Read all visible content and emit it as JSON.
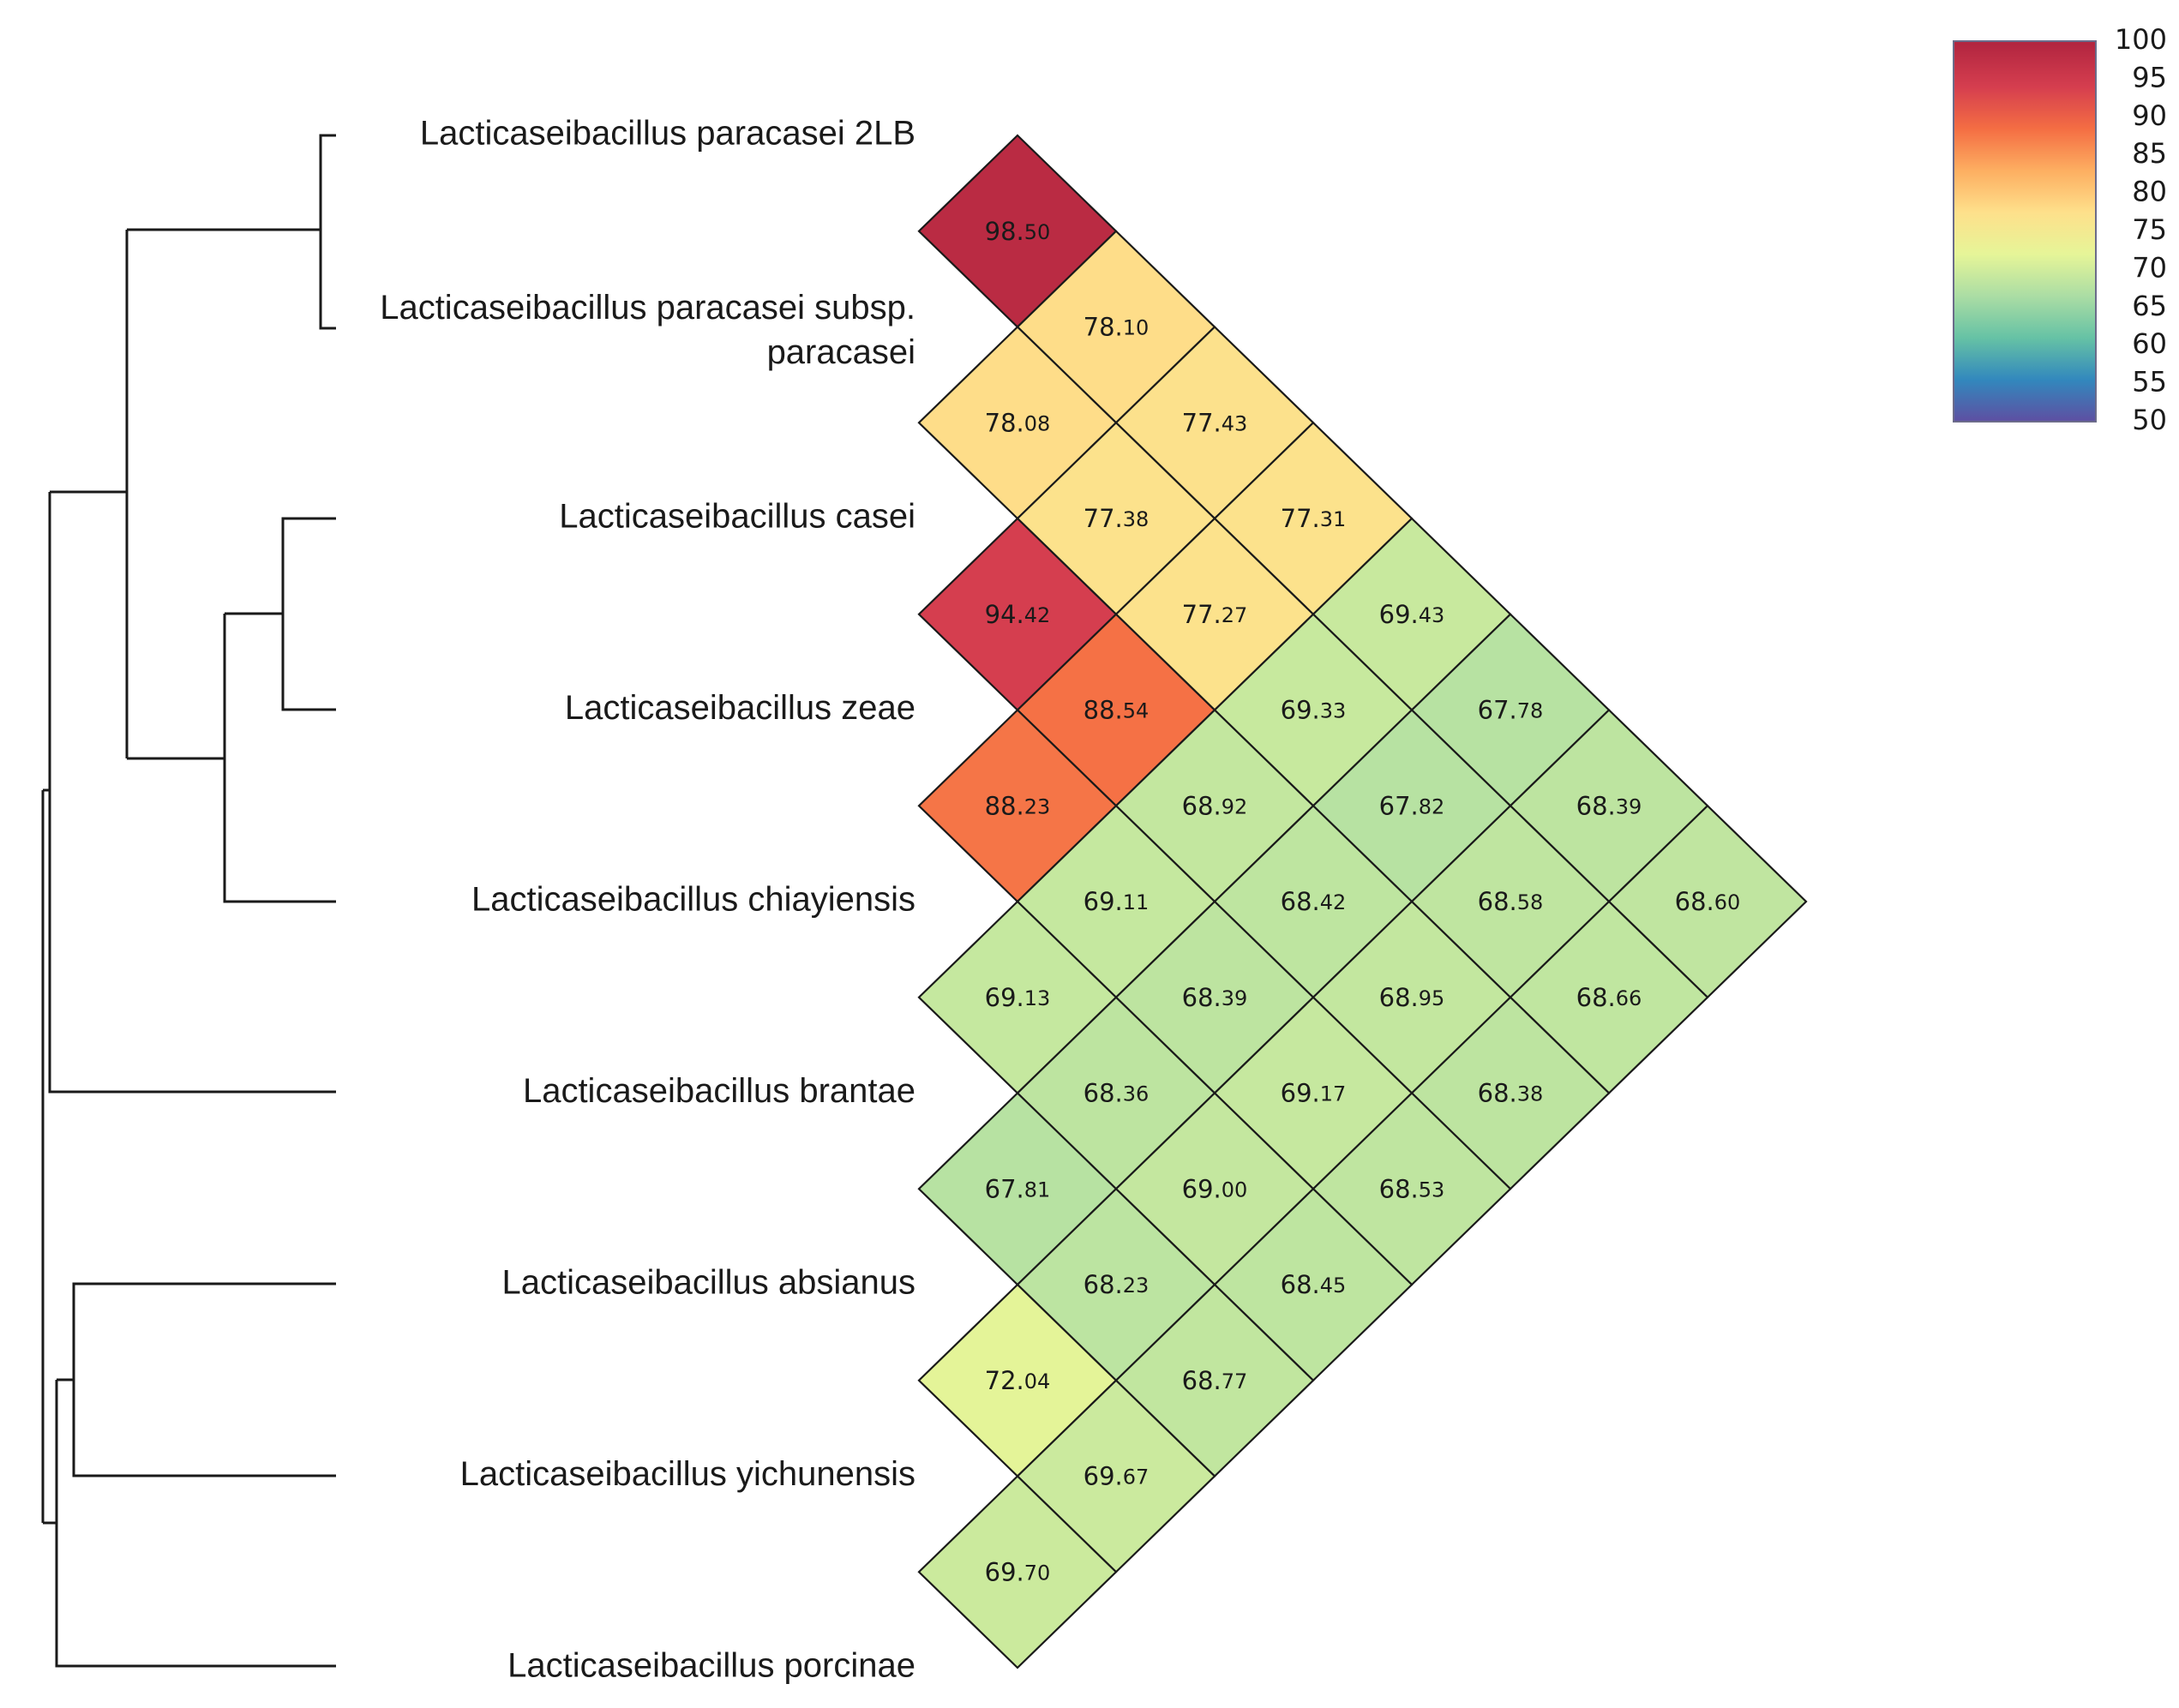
{
  "chart_data": {
    "type": "heatmap",
    "title": "",
    "taxa": [
      [
        "Lacticaseibacillus paracasei 2LB"
      ],
      [
        "Lacticaseibacillus paracasei subsp.",
        "paracasei"
      ],
      [
        "Lacticaseibacillus casei"
      ],
      [
        "Lacticaseibacillus zeae"
      ],
      [
        "Lacticaseibacillus chiayiensis"
      ],
      [
        "Lacticaseibacillus brantae"
      ],
      [
        "Lacticaseibacillus absianus"
      ],
      [
        "Lacticaseibacillus yichunensis"
      ],
      [
        "Lacticaseibacillus porcinae"
      ]
    ],
    "pairs": [
      {
        "i": 0,
        "j": 1,
        "value": 98.5
      },
      {
        "i": 0,
        "j": 2,
        "value": 78.1
      },
      {
        "i": 0,
        "j": 3,
        "value": 77.43
      },
      {
        "i": 0,
        "j": 4,
        "value": 77.31
      },
      {
        "i": 0,
        "j": 5,
        "value": 69.43
      },
      {
        "i": 0,
        "j": 6,
        "value": 67.78
      },
      {
        "i": 0,
        "j": 7,
        "value": 68.39
      },
      {
        "i": 0,
        "j": 8,
        "value": 68.6
      },
      {
        "i": 1,
        "j": 2,
        "value": 78.08
      },
      {
        "i": 1,
        "j": 3,
        "value": 77.38
      },
      {
        "i": 1,
        "j": 4,
        "value": 77.27
      },
      {
        "i": 1,
        "j": 5,
        "value": 69.33
      },
      {
        "i": 1,
        "j": 6,
        "value": 67.82
      },
      {
        "i": 1,
        "j": 7,
        "value": 68.58
      },
      {
        "i": 1,
        "j": 8,
        "value": 68.66
      },
      {
        "i": 2,
        "j": 3,
        "value": 94.42
      },
      {
        "i": 2,
        "j": 4,
        "value": 88.54
      },
      {
        "i": 2,
        "j": 5,
        "value": 68.92
      },
      {
        "i": 2,
        "j": 6,
        "value": 68.42
      },
      {
        "i": 2,
        "j": 7,
        "value": 68.95
      },
      {
        "i": 2,
        "j": 8,
        "value": 68.38
      },
      {
        "i": 3,
        "j": 4,
        "value": 88.23
      },
      {
        "i": 3,
        "j": 5,
        "value": 69.11
      },
      {
        "i": 3,
        "j": 6,
        "value": 68.39
      },
      {
        "i": 3,
        "j": 7,
        "value": 69.17
      },
      {
        "i": 3,
        "j": 8,
        "value": 68.53
      },
      {
        "i": 4,
        "j": 5,
        "value": 69.13
      },
      {
        "i": 4,
        "j": 6,
        "value": 68.36
      },
      {
        "i": 4,
        "j": 7,
        "value": 69.0
      },
      {
        "i": 4,
        "j": 8,
        "value": 68.45
      },
      {
        "i": 5,
        "j": 6,
        "value": 67.81
      },
      {
        "i": 5,
        "j": 7,
        "value": 68.23
      },
      {
        "i": 5,
        "j": 8,
        "value": 68.77
      },
      {
        "i": 6,
        "j": 7,
        "value": 72.04
      },
      {
        "i": 6,
        "j": 8,
        "value": 69.67
      },
      {
        "i": 7,
        "j": 8,
        "value": 69.7
      }
    ],
    "colorbar": {
      "min": 50,
      "max": 100,
      "ticks": [
        100,
        95,
        90,
        85,
        80,
        75,
        70,
        65,
        60,
        55,
        50
      ],
      "palette": [
        "#5e4fa2",
        "#3288bd",
        "#66c2a5",
        "#abdda4",
        "#e6f598",
        "#fee08b",
        "#fdae61",
        "#f46d43",
        "#d53e4f",
        "#b0243f"
      ],
      "placement": "top-right"
    },
    "dendrogram": "(((paracasei 2LB, paracasei subsp. paracasei), ((casei, zeae), chiayiensis)), brantae, (absianus, yichunensis), porcinae)"
  }
}
